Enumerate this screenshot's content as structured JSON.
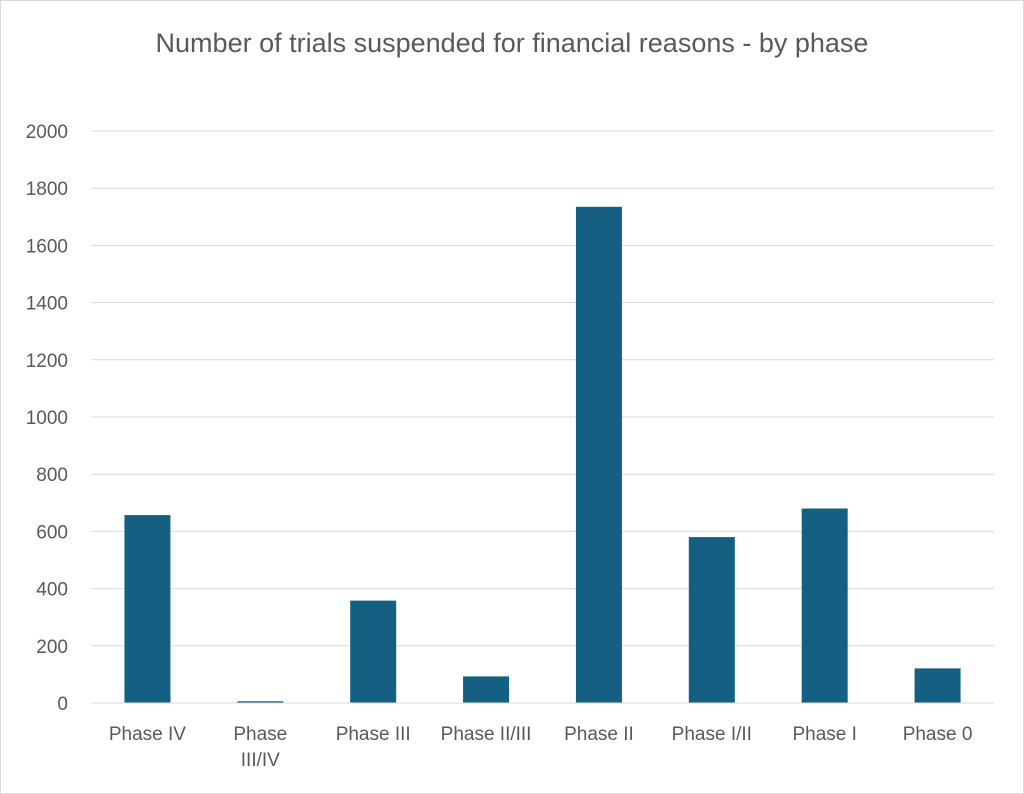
{
  "chart_data": {
    "type": "bar",
    "title": "Number of trials suspended for financial reasons - by phase",
    "xlabel": "",
    "ylabel": "",
    "categories": [
      "Phase IV",
      "Phase III/IV",
      "Phase III",
      "Phase II/III",
      "Phase II",
      "Phase I/II",
      "Phase I",
      "Phase 0"
    ],
    "category_lines": [
      [
        "Phase IV"
      ],
      [
        "Phase",
        "III/IV"
      ],
      [
        "Phase III"
      ],
      [
        "Phase II/III"
      ],
      [
        "Phase II"
      ],
      [
        "Phase I/II"
      ],
      [
        "Phase I"
      ],
      [
        "Phase 0"
      ]
    ],
    "values": [
      657,
      6,
      358,
      93,
      1735,
      580,
      680,
      121
    ],
    "ylim": [
      0,
      2000
    ],
    "yticks": [
      0,
      200,
      400,
      600,
      800,
      1000,
      1200,
      1400,
      1600,
      1800,
      2000
    ],
    "grid": true,
    "legend": "none",
    "bar_color": "#156082",
    "gridline_color": "#d9d9d9",
    "text_color": "#595959"
  }
}
